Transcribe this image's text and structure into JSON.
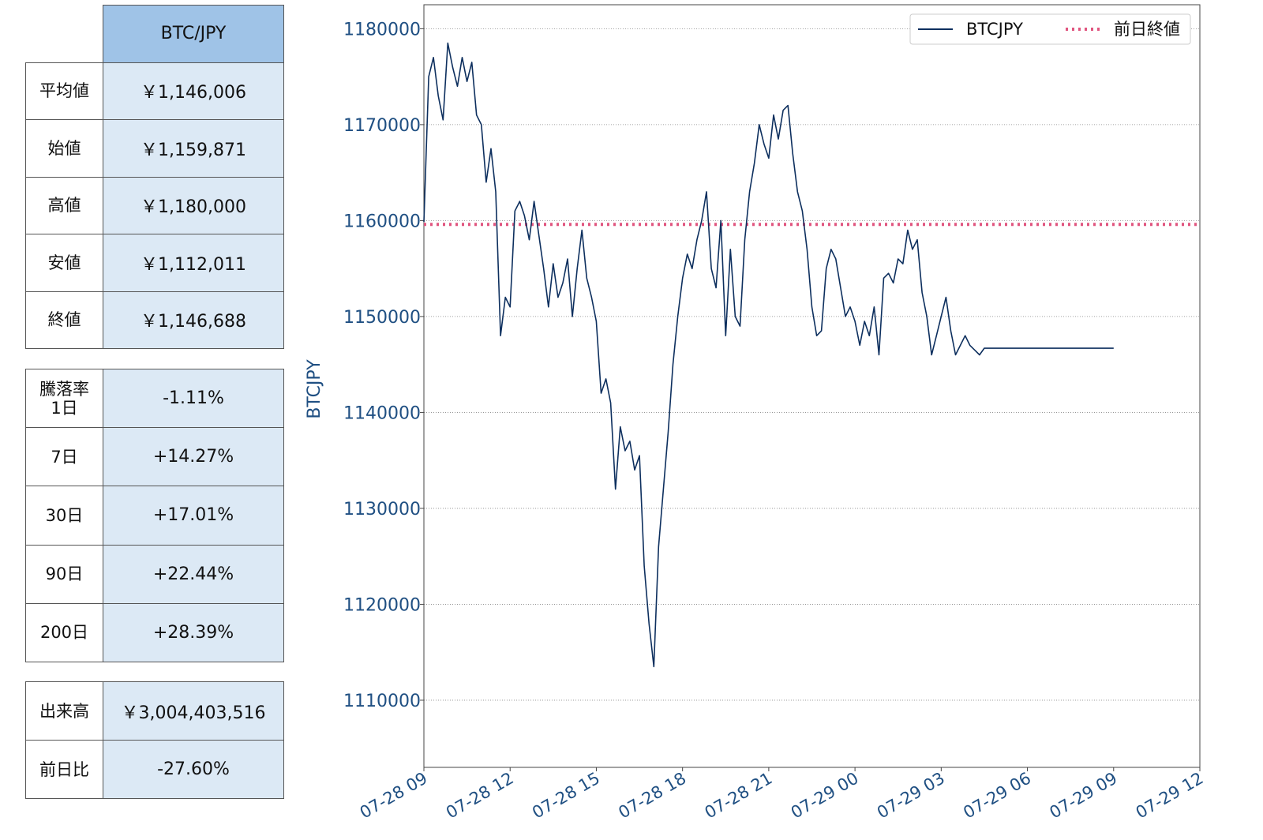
{
  "summary": {
    "header": "BTC/JPY",
    "rows": [
      {
        "label": "平均値",
        "value": "￥1,146,006"
      },
      {
        "label": "始値",
        "value": "￥1,159,871"
      },
      {
        "label": "高値",
        "value": "￥1,180,000"
      },
      {
        "label": "安値",
        "value": "￥1,112,011"
      },
      {
        "label": "終値",
        "value": "￥1,146,688"
      }
    ]
  },
  "change": {
    "first_label_line1": "騰落率",
    "first_label_line2": "1日",
    "rows": [
      {
        "label": "1日",
        "value": "-1.11%"
      },
      {
        "label": "7日",
        "value": "+14.27%"
      },
      {
        "label": "30日",
        "value": "+17.01%"
      },
      {
        "label": "90日",
        "value": "+22.44%"
      },
      {
        "label": "200日",
        "value": "+28.39%"
      }
    ]
  },
  "volume": {
    "rows": [
      {
        "label": "出来高",
        "value": "￥3,004,403,516"
      },
      {
        "label": "前日比",
        "value": "-27.60%"
      }
    ]
  },
  "colors": {
    "line": "#0d2f5e",
    "reference": "#e0557f",
    "axis_text": "#1f4f82",
    "header_bg": "#9fc3e7",
    "value_bg": "#dce9f5"
  },
  "chart_data": {
    "type": "line",
    "ylabel": "BTCJPY",
    "ylim": [
      1103000,
      1182500
    ],
    "yticks": [
      1110000,
      1120000,
      1130000,
      1140000,
      1150000,
      1160000,
      1170000,
      1180000
    ],
    "xlim": [
      "07-28 09:00",
      "07-29 12:00"
    ],
    "xticks": [
      "07-28 09",
      "07-28 12",
      "07-28 15",
      "07-28 18",
      "07-28 21",
      "07-29 00",
      "07-29 03",
      "07-29 06",
      "07-29 09",
      "07-29 12"
    ],
    "grid": "horizontal-dotted",
    "legend": {
      "position": "top-right",
      "entries": [
        "BTCJPY",
        "前日終値"
      ]
    },
    "reference_line": {
      "name": "前日終値",
      "value": 1159600
    },
    "series": [
      {
        "name": "BTCJPY",
        "x": [
          "07-28 09:00",
          "07-28 09:10",
          "07-28 09:20",
          "07-28 09:30",
          "07-28 09:40",
          "07-28 09:50",
          "07-28 10:00",
          "07-28 10:10",
          "07-28 10:20",
          "07-28 10:30",
          "07-28 10:40",
          "07-28 10:50",
          "07-28 11:00",
          "07-28 11:10",
          "07-28 11:20",
          "07-28 11:30",
          "07-28 11:40",
          "07-28 11:50",
          "07-28 12:00",
          "07-28 12:10",
          "07-28 12:20",
          "07-28 12:30",
          "07-28 12:40",
          "07-28 12:50",
          "07-28 13:00",
          "07-28 13:10",
          "07-28 13:20",
          "07-28 13:30",
          "07-28 13:40",
          "07-28 13:50",
          "07-28 14:00",
          "07-28 14:10",
          "07-28 14:20",
          "07-28 14:30",
          "07-28 14:40",
          "07-28 14:50",
          "07-28 15:00",
          "07-28 15:10",
          "07-28 15:20",
          "07-28 15:30",
          "07-28 15:40",
          "07-28 15:50",
          "07-28 16:00",
          "07-28 16:10",
          "07-28 16:20",
          "07-28 16:30",
          "07-28 16:40",
          "07-28 16:50",
          "07-28 17:00",
          "07-28 17:10",
          "07-28 17:20",
          "07-28 17:30",
          "07-28 17:40",
          "07-28 17:50",
          "07-28 18:00",
          "07-28 18:10",
          "07-28 18:20",
          "07-28 18:30",
          "07-28 18:40",
          "07-28 18:50",
          "07-28 19:00",
          "07-28 19:10",
          "07-28 19:20",
          "07-28 19:30",
          "07-28 19:40",
          "07-28 19:50",
          "07-28 20:00",
          "07-28 20:10",
          "07-28 20:20",
          "07-28 20:30",
          "07-28 20:40",
          "07-28 20:50",
          "07-28 21:00",
          "07-28 21:10",
          "07-28 21:20",
          "07-28 21:30",
          "07-28 21:40",
          "07-28 21:50",
          "07-28 22:00",
          "07-28 22:10",
          "07-28 22:20",
          "07-28 22:30",
          "07-28 22:40",
          "07-28 22:50",
          "07-28 23:00",
          "07-28 23:10",
          "07-28 23:20",
          "07-28 23:30",
          "07-28 23:40",
          "07-28 23:50",
          "07-29 00:00",
          "07-29 00:10",
          "07-29 00:20",
          "07-29 00:30",
          "07-29 00:40",
          "07-29 00:50",
          "07-29 01:00",
          "07-29 01:10",
          "07-29 01:20",
          "07-29 01:30",
          "07-29 01:40",
          "07-29 01:50",
          "07-29 02:00",
          "07-29 02:10",
          "07-29 02:20",
          "07-29 02:30",
          "07-29 02:40",
          "07-29 02:50",
          "07-29 03:00",
          "07-29 03:10",
          "07-29 03:20",
          "07-29 03:30",
          "07-29 03:40",
          "07-29 03:50",
          "07-29 04:00",
          "07-29 04:10",
          "07-29 04:20",
          "07-29 04:30",
          "07-29 04:40",
          "07-29 04:50",
          "07-29 05:00",
          "07-29 05:10",
          "07-29 05:20",
          "07-29 05:30",
          "07-29 05:40",
          "07-29 05:50",
          "07-29 06:00",
          "07-29 06:10",
          "07-29 06:20",
          "07-29 06:30",
          "07-29 06:40",
          "07-29 06:50",
          "07-29 07:00",
          "07-29 07:10",
          "07-29 07:20",
          "07-29 07:30",
          "07-29 07:40",
          "07-29 07:50",
          "07-29 08:00",
          "07-29 08:10",
          "07-29 08:20",
          "07-29 08:30",
          "07-29 08:40",
          "07-29 08:50",
          "07-29 09:00"
        ],
        "values": [
          1159871,
          1175000,
          1177000,
          1173000,
          1170500,
          1178500,
          1176000,
          1174000,
          1177000,
          1174500,
          1176500,
          1171000,
          1170000,
          1164000,
          1167500,
          1163000,
          1148000,
          1152000,
          1151000,
          1161000,
          1162000,
          1160500,
          1158000,
          1162000,
          1158500,
          1155000,
          1151000,
          1155500,
          1152000,
          1153500,
          1156000,
          1150000,
          1155000,
          1159000,
          1154000,
          1152000,
          1149500,
          1142000,
          1143500,
          1141000,
          1132000,
          1138500,
          1136000,
          1137000,
          1134000,
          1135500,
          1124000,
          1118000,
          1113500,
          1126000,
          1132000,
          1138000,
          1145000,
          1150000,
          1154000,
          1156500,
          1155000,
          1158000,
          1160000,
          1163000,
          1155000,
          1153000,
          1160000,
          1148000,
          1157000,
          1150000,
          1149000,
          1158000,
          1163000,
          1166000,
          1170000,
          1168000,
          1166500,
          1171000,
          1168500,
          1171500,
          1172000,
          1167000,
          1163000,
          1161000,
          1157000,
          1151000,
          1148000,
          1148500,
          1155000,
          1157000,
          1156000,
          1153000,
          1150000,
          1151000,
          1149500,
          1147000,
          1149500,
          1148000,
          1151000,
          1146000,
          1154000,
          1154500,
          1153500,
          1156000,
          1155500,
          1159000,
          1157000,
          1158000,
          1152500,
          1150000,
          1146000,
          1148000,
          1150000,
          1152000,
          1148500,
          1146000,
          1147000,
          1148000,
          1147000,
          1146500,
          1146000,
          1146688,
          1146688,
          1146688,
          1146688,
          1146688,
          1146688,
          1146688,
          1146688,
          1146688,
          1146688,
          1146688,
          1146688,
          1146688,
          1146688,
          1146688,
          1146688,
          1146688,
          1146688,
          1146688,
          1146688,
          1146688,
          1146688,
          1146688,
          1146688,
          1146688,
          1146688,
          1146688,
          1146688
        ]
      }
    ]
  }
}
